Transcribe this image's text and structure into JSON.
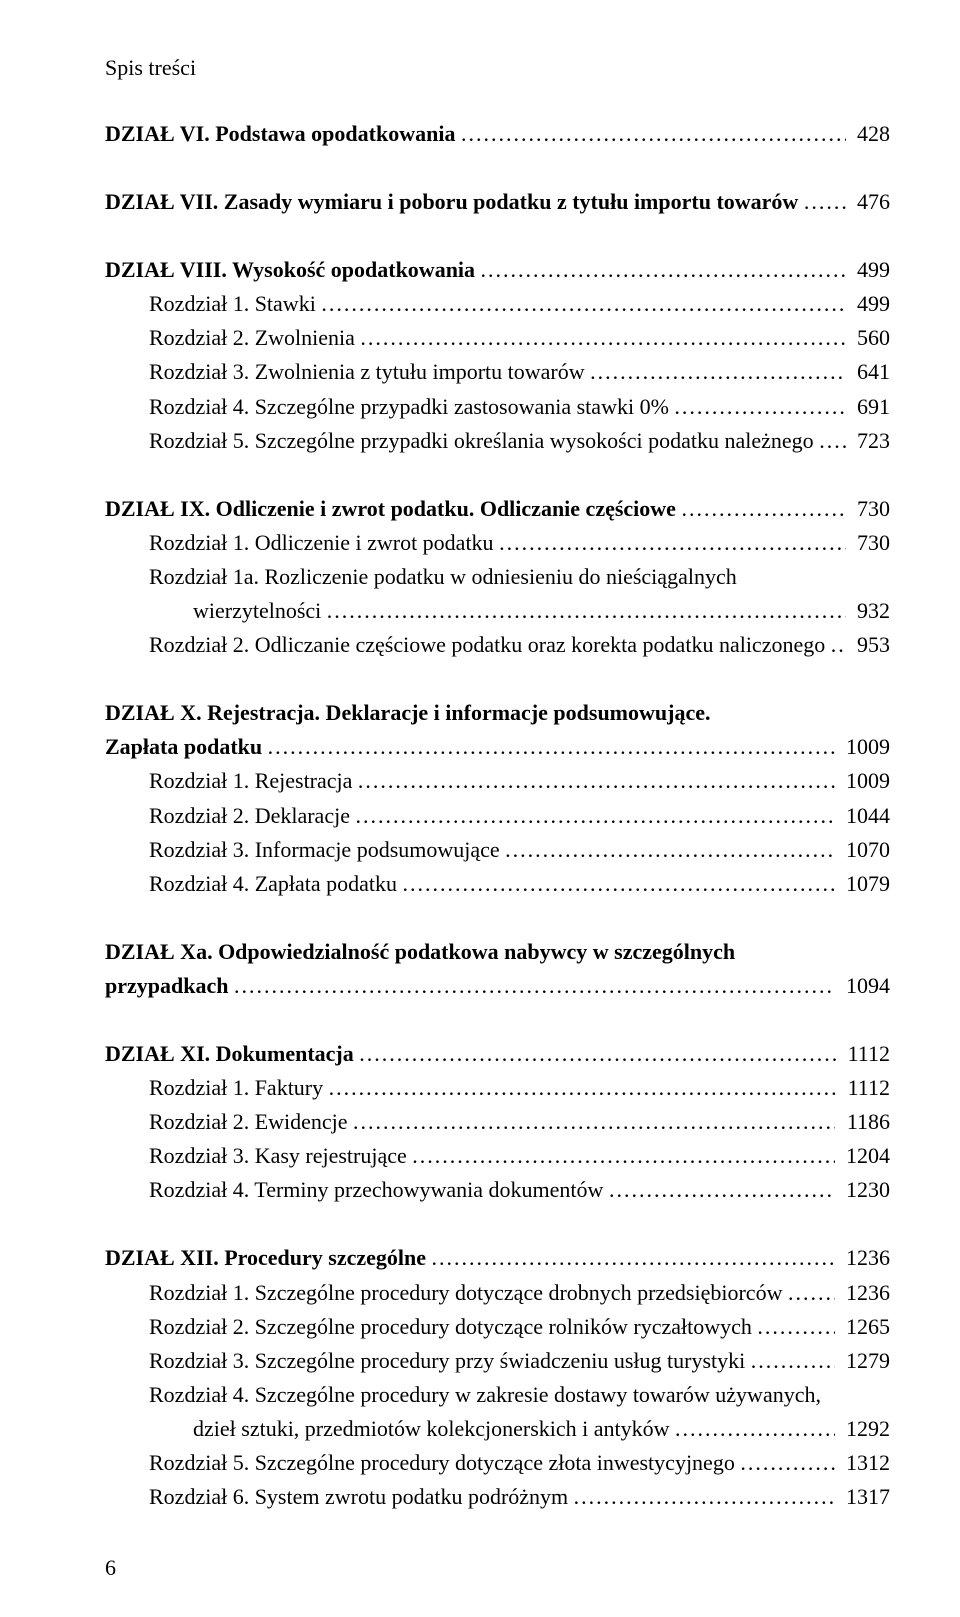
{
  "header": "Spis treści",
  "page_number": "6",
  "entries": [
    {
      "bold": true,
      "indent": 0,
      "label": "DZIAŁ VI. Podstawa opodatkowania",
      "page": "428",
      "gapAfter": true
    },
    {
      "bold": true,
      "indent": 0,
      "label": "DZIAŁ VII. Zasady wymiaru i poboru podatku z tytułu importu towarów",
      "page": "476",
      "gapAfter": true
    },
    {
      "bold": true,
      "indent": 0,
      "label": "DZIAŁ VIII. Wysokość opodatkowania",
      "page": "499"
    },
    {
      "bold": false,
      "indent": 1,
      "label": "Rozdział 1. Stawki",
      "page": "499"
    },
    {
      "bold": false,
      "indent": 1,
      "label": "Rozdział 2. Zwolnienia",
      "page": "560"
    },
    {
      "bold": false,
      "indent": 1,
      "label": "Rozdział 3. Zwolnienia z tytułu importu towarów",
      "page": "641"
    },
    {
      "bold": false,
      "indent": 1,
      "label": "Rozdział 4. Szczególne przypadki zastosowania stawki 0%",
      "page": "691"
    },
    {
      "bold": false,
      "indent": 1,
      "label": "Rozdział 5. Szczególne przypadki określania wysokości podatku należnego",
      "page": "723",
      "gapAfter": true
    },
    {
      "bold": true,
      "indent": 0,
      "label": "DZIAŁ IX. Odliczenie i zwrot podatku. Odliczanie częściowe",
      "page": "730"
    },
    {
      "bold": false,
      "indent": 1,
      "label": "Rozdział 1. Odliczenie i zwrot podatku",
      "page": "730"
    },
    {
      "bold": false,
      "indent": 1,
      "label": "Rozdział 1a. Rozliczenie podatku w odniesieniu do nieściągalnych",
      "page": null
    },
    {
      "bold": false,
      "indent": 2,
      "label": "wierzytelności",
      "page": "932"
    },
    {
      "bold": false,
      "indent": 1,
      "label": "Rozdział 2. Odliczanie częściowe podatku oraz korekta podatku naliczonego",
      "page": "953",
      "gapAfter": true
    },
    {
      "bold": true,
      "indent": 0,
      "label": "DZIAŁ X. Rejestracja. Deklaracje i informacje podsumowujące.",
      "page": null
    },
    {
      "bold": true,
      "indent": 0,
      "label": "Zapłata podatku",
      "page": "1009"
    },
    {
      "bold": false,
      "indent": 1,
      "label": "Rozdział 1. Rejestracja",
      "page": "1009"
    },
    {
      "bold": false,
      "indent": 1,
      "label": "Rozdział 2. Deklaracje",
      "page": "1044"
    },
    {
      "bold": false,
      "indent": 1,
      "label": "Rozdział 3. Informacje podsumowujące",
      "page": "1070"
    },
    {
      "bold": false,
      "indent": 1,
      "label": "Rozdział 4. Zapłata podatku",
      "page": "1079",
      "gapAfter": true
    },
    {
      "bold": true,
      "indent": 0,
      "label": "DZIAŁ Xa. Odpowiedzialność podatkowa nabywcy w szczególnych",
      "page": null
    },
    {
      "bold": true,
      "indent": 0,
      "label": "przypadkach",
      "page": "1094",
      "gapAfter": true
    },
    {
      "bold": true,
      "indent": 0,
      "label": "DZIAŁ XI. Dokumentacja",
      "page": "1112"
    },
    {
      "bold": false,
      "indent": 1,
      "label": "Rozdział 1. Faktury",
      "page": "1112"
    },
    {
      "bold": false,
      "indent": 1,
      "label": "Rozdział 2. Ewidencje",
      "page": "1186"
    },
    {
      "bold": false,
      "indent": 1,
      "label": "Rozdział 3. Kasy rejestrujące",
      "page": "1204"
    },
    {
      "bold": false,
      "indent": 1,
      "label": "Rozdział 4. Terminy przechowywania dokumentów",
      "page": "1230",
      "gapAfter": true
    },
    {
      "bold": true,
      "indent": 0,
      "label": "DZIAŁ XII. Procedury szczególne",
      "page": "1236"
    },
    {
      "bold": false,
      "indent": 1,
      "label": "Rozdział 1. Szczególne procedury dotyczące drobnych przedsiębiorców",
      "page": "1236"
    },
    {
      "bold": false,
      "indent": 1,
      "label": "Rozdział 2. Szczególne procedury dotyczące rolników ryczałtowych",
      "page": "1265"
    },
    {
      "bold": false,
      "indent": 1,
      "label": "Rozdział 3. Szczególne procedury przy świadczeniu usług turystyki",
      "page": "1279"
    },
    {
      "bold": false,
      "indent": 1,
      "label": "Rozdział 4. Szczególne procedury w zakresie dostawy towarów używanych,",
      "page": null
    },
    {
      "bold": false,
      "indent": 2,
      "label": "dzieł sztuki, przedmiotów kolekcjonerskich i antyków",
      "page": "1292"
    },
    {
      "bold": false,
      "indent": 1,
      "label": "Rozdział 5. Szczególne procedury dotyczące złota inwestycyjnego",
      "page": "1312"
    },
    {
      "bold": false,
      "indent": 1,
      "label": "Rozdział 6. System zwrotu podatku podróżnym",
      "page": "1317"
    }
  ]
}
